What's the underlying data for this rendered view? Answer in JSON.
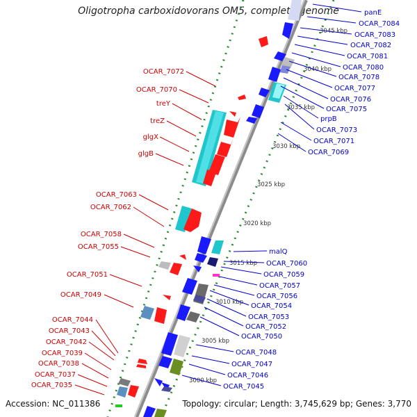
{
  "title": "Oligotropha carboxidovorans OM5, complete genome",
  "footer": {
    "accession": "Accession: NC_011386",
    "summary": "Topology: circular; Length: 3,745,629 bp; Genes: 3,770"
  },
  "colors": {
    "backbone": "#8c8c8c",
    "left_label": "#cc0000",
    "right_label": "#0000cc",
    "forward_gene": "#ff1a1a",
    "reverse_gene": "#1a1aff",
    "tick": "#2a8a2a"
  },
  "position_ticks": [
    "3045 kbp",
    "3040 kbp",
    "3035 kbp",
    "3030 kbp",
    "3025 kbp",
    "3020 kbp",
    "3015 kbp",
    "3010 kbp",
    "3005 kbp",
    "3000 kbp"
  ],
  "left_labels": [
    "OCAR_7072",
    "OCAR_7070",
    "treY",
    "treZ",
    "glgX",
    "glgB",
    "OCAR_7063",
    "OCAR_7062",
    "OCAR_7058",
    "OCAR_7055",
    "OCAR_7051",
    "OCAR_7049",
    "OCAR_7044",
    "OCAR_7043",
    "OCAR_7042",
    "OCAR_7039",
    "OCAR_7038",
    "OCAR_7037",
    "OCAR_7035"
  ],
  "right_labels": [
    "panE",
    "OCAR_7084",
    "OCAR_7083",
    "OCAR_7082",
    "OCAR_7081",
    "OCAR_7080",
    "OCAR_7078",
    "OCAR_7077",
    "OCAR_7076",
    "OCAR_7075",
    "prpB",
    "OCAR_7073",
    "OCAR_7071",
    "OCAR_7069",
    "malQ",
    "OCAR_7060",
    "OCAR_7059",
    "OCAR_7057",
    "OCAR_7056",
    "OCAR_7054",
    "OCAR_7053",
    "OCAR_7052",
    "OCAR_7050",
    "OCAR_7048",
    "OCAR_7047",
    "OCAR_7046",
    "OCAR_7045"
  ]
}
